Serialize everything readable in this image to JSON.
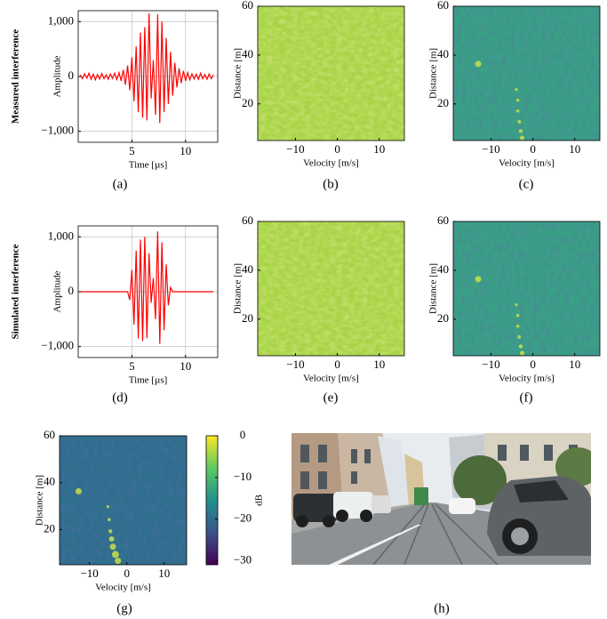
{
  "chart_data": [
    {
      "type": "line",
      "row_label": "Measured interference",
      "xlabel": "Time [µs]",
      "ylabel": "Amplitude",
      "caption": "(a)",
      "xlim": [
        0,
        13
      ],
      "ylim": [
        -1200,
        1200
      ],
      "xticks": [
        5,
        10
      ],
      "yticks": [
        {
          "value": -1000,
          "label": "−1,000"
        },
        0,
        {
          "value": 1000,
          "label": "1,000"
        }
      ],
      "grid": true,
      "series": [
        {
          "color": "#ff0000",
          "x": [
            0.2,
            0.4,
            0.6,
            0.8,
            1.0,
            1.2,
            1.4,
            1.6,
            1.8,
            2.0,
            2.2,
            2.4,
            2.6,
            2.8,
            3.0,
            3.2,
            3.4,
            3.6,
            3.8,
            4.0,
            4.2,
            4.4,
            4.6,
            4.8,
            5.0,
            5.2,
            5.4,
            5.6,
            5.8,
            6.0,
            6.2,
            6.4,
            6.6,
            6.8,
            7.0,
            7.2,
            7.4,
            7.6,
            7.8,
            8.0,
            8.2,
            8.4,
            8.6,
            8.8,
            9.0,
            9.2,
            9.4,
            9.6,
            9.8,
            10.0,
            10.2,
            10.4,
            10.6,
            10.8,
            11.0,
            11.2,
            11.4,
            11.6,
            11.8,
            12.0,
            12.2,
            12.4,
            12.6
          ],
          "values": [
            30,
            -40,
            50,
            -30,
            60,
            -50,
            40,
            -60,
            35,
            -45,
            55,
            -40,
            30,
            -50,
            45,
            -35,
            60,
            -55,
            70,
            -80,
            120,
            -150,
            200,
            -250,
            350,
            -450,
            550,
            -650,
            800,
            -750,
            900,
            -800,
            1150,
            -400,
            300,
            -700,
            1130,
            -850,
            1000,
            -650,
            700,
            -500,
            450,
            -350,
            250,
            -200,
            150,
            -120,
            100,
            -80,
            70,
            -60,
            50,
            -45,
            40,
            -50,
            60,
            -40,
            35,
            -50,
            45,
            -40,
            30
          ]
        }
      ]
    },
    {
      "type": "heatmap",
      "xlabel": "Velocity [m/s]",
      "ylabel": "Distance [m]",
      "caption": "(b)",
      "colormap": "measured-raw",
      "xlim": [
        -19,
        16
      ],
      "ylim": [
        5,
        60
      ],
      "xticks": [
        {
          "value": -10,
          "label": "−10"
        },
        0,
        10
      ],
      "yticks": [
        20,
        40,
        60
      ]
    },
    {
      "type": "heatmap",
      "xlabel": "Velocity [m/s]",
      "ylabel": "Distance [m]",
      "caption": "(c)",
      "colormap": "measured-mitigated",
      "xlim": [
        -19,
        16
      ],
      "ylim": [
        5,
        60
      ],
      "xticks": [
        {
          "value": -10,
          "label": "−10"
        },
        0,
        10
      ],
      "yticks": [
        20,
        40,
        60
      ]
    },
    {
      "type": "line",
      "row_label": "Simulated interference",
      "xlabel": "Time [µs]",
      "ylabel": "Amplitude",
      "caption": "(d)",
      "xlim": [
        0,
        13
      ],
      "ylim": [
        -1200,
        1200
      ],
      "xticks": [
        5,
        10
      ],
      "yticks": [
        {
          "value": -1000,
          "label": "−1,000"
        },
        0,
        {
          "value": 1000,
          "label": "1,000"
        }
      ],
      "grid": true,
      "series": [
        {
          "color": "#ff0000",
          "x": [
            0.2,
            0.4,
            0.6,
            0.8,
            1.0,
            1.2,
            1.4,
            1.6,
            1.8,
            2.0,
            2.2,
            2.4,
            2.6,
            2.8,
            3.0,
            3.2,
            3.4,
            3.6,
            3.8,
            4.0,
            4.2,
            4.4,
            4.6,
            4.8,
            5.0,
            5.2,
            5.4,
            5.6,
            5.8,
            6.0,
            6.2,
            6.4,
            6.6,
            6.8,
            7.0,
            7.2,
            7.4,
            7.6,
            7.8,
            8.0,
            8.2,
            8.4,
            8.6,
            8.8,
            9.0,
            9.2,
            9.4,
            9.6,
            9.8,
            10.0,
            10.2,
            10.4,
            10.6,
            10.8,
            11.0,
            11.2,
            11.4,
            11.6,
            11.8,
            12.0,
            12.2,
            12.4,
            12.6
          ],
          "values": [
            0,
            0,
            0,
            0,
            0,
            0,
            0,
            0,
            0,
            0,
            0,
            0,
            0,
            0,
            0,
            0,
            0,
            0,
            0,
            0,
            0,
            0,
            0,
            -150,
            400,
            -600,
            750,
            -850,
            950,
            -900,
            1000,
            -850,
            700,
            -200,
            250,
            -500,
            1100,
            -950,
            900,
            -700,
            500,
            -250,
            80,
            0,
            0,
            0,
            0,
            0,
            0,
            0,
            0,
            0,
            0,
            0,
            0,
            0,
            0,
            0,
            0,
            0,
            0,
            0,
            0
          ]
        }
      ]
    },
    {
      "type": "heatmap",
      "xlabel": "Velocity [m/s]",
      "ylabel": "Distance [m]",
      "caption": "(e)",
      "colormap": "measured-raw",
      "xlim": [
        -19,
        16
      ],
      "ylim": [
        5,
        60
      ],
      "xticks": [
        {
          "value": -10,
          "label": "−10"
        },
        0,
        10
      ],
      "yticks": [
        20,
        40,
        60
      ]
    },
    {
      "type": "heatmap",
      "xlabel": "Velocity [m/s]",
      "ylabel": "Distance [m]",
      "caption": "(f)",
      "colormap": "measured-mitigated",
      "xlim": [
        -19,
        16
      ],
      "ylim": [
        5,
        60
      ],
      "xticks": [
        {
          "value": -10,
          "label": "−10"
        },
        0,
        10
      ],
      "yticks": [
        20,
        40,
        60
      ]
    },
    {
      "type": "heatmap",
      "xlabel": "Velocity [m/s]",
      "ylabel": "Distance [m]",
      "caption": "(g)",
      "colormap": "reference",
      "xlim": [
        -18,
        16
      ],
      "ylim": [
        5,
        60
      ],
      "xticks": [
        {
          "value": -10,
          "label": "−10"
        },
        0,
        10
      ],
      "yticks": [
        20,
        40,
        60
      ],
      "colorbar": {
        "label": "dB",
        "lim": [
          -31,
          0
        ],
        "ticks": [
          0,
          {
            "value": -10,
            "label": "−10"
          },
          {
            "value": -20,
            "label": "−20"
          },
          {
            "value": -30,
            "label": "−30"
          }
        ]
      }
    }
  ],
  "photo": {
    "caption": "(h)"
  }
}
